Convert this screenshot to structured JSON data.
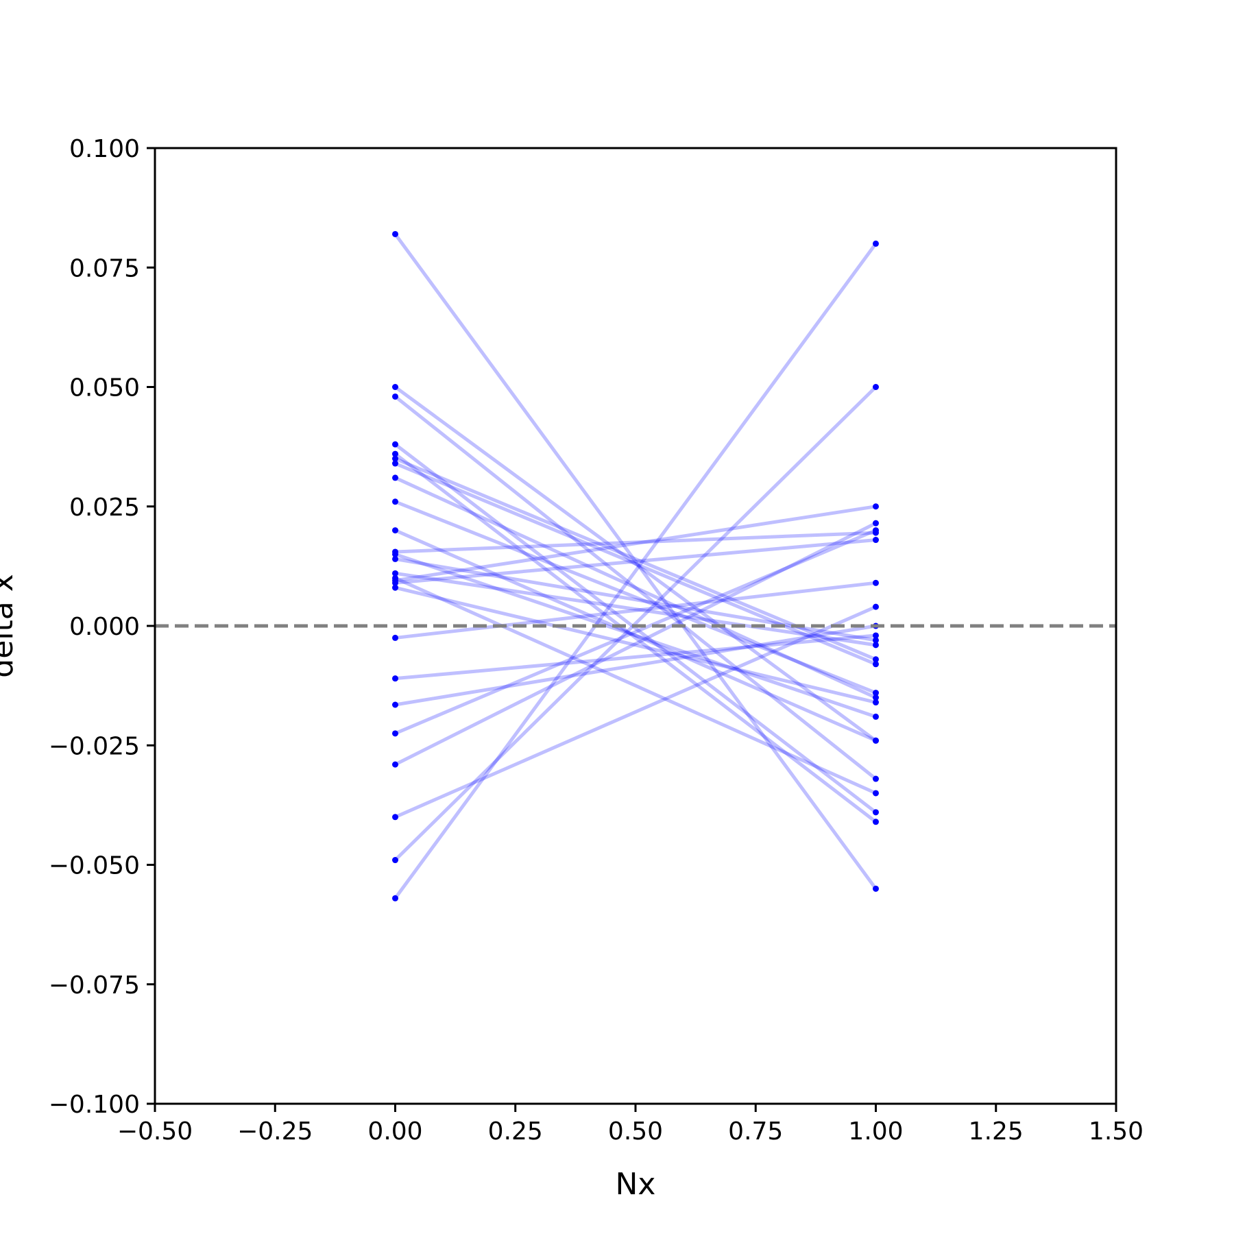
{
  "chart_data": {
    "type": "line",
    "xlabel": "Nx",
    "ylabel": "delta x",
    "xlim": [
      -0.5,
      1.5
    ],
    "ylim": [
      -0.1,
      0.1
    ],
    "xticks": [
      -0.5,
      -0.25,
      0.0,
      0.25,
      0.5,
      0.75,
      1.0,
      1.25,
      1.5
    ],
    "xtick_labels": [
      "−0.50",
      "−0.25",
      "0.00",
      "0.25",
      "0.50",
      "0.75",
      "1.00",
      "1.25",
      "1.50"
    ],
    "yticks": [
      -0.1,
      -0.075,
      -0.05,
      -0.025,
      0.0,
      0.025,
      0.05,
      0.075,
      0.1
    ],
    "ytick_labels": [
      "−0.100",
      "−0.075",
      "−0.050",
      "−0.025",
      "0.000",
      "0.025",
      "0.050",
      "0.075",
      "0.100"
    ],
    "reference_line": {
      "y": 0.0,
      "style": "dashed",
      "color": "#808080"
    },
    "line_color": "#0000ff",
    "line_alpha": 0.25,
    "marker_color": "#0000ff",
    "grid": false,
    "x": [
      0,
      1
    ],
    "pairs": [
      [
        0.082,
        -0.055
      ],
      [
        0.05,
        -0.024
      ],
      [
        0.048,
        -0.032
      ],
      [
        0.038,
        -0.039
      ],
      [
        0.036,
        -0.041
      ],
      [
        0.035,
        -0.007
      ],
      [
        0.034,
        -0.008
      ],
      [
        0.031,
        -0.015
      ],
      [
        0.026,
        -0.014
      ],
      [
        0.02,
        -0.024
      ],
      [
        0.015,
        -0.019
      ],
      [
        0.014,
        -0.003
      ],
      [
        0.01,
        -0.035
      ],
      [
        0.009,
        0.018
      ],
      [
        0.008,
        -0.016
      ],
      [
        0.0155,
        0.0195
      ],
      [
        -0.0025,
        0.009
      ],
      [
        -0.011,
        -0.002
      ],
      [
        -0.0165,
        0.0
      ],
      [
        -0.0225,
        0.02
      ],
      [
        -0.029,
        0.0215
      ],
      [
        -0.04,
        0.004
      ],
      [
        -0.049,
        0.05
      ],
      [
        -0.057,
        0.08
      ],
      [
        0.0095,
        0.025
      ],
      [
        0.011,
        -0.004
      ]
    ]
  }
}
